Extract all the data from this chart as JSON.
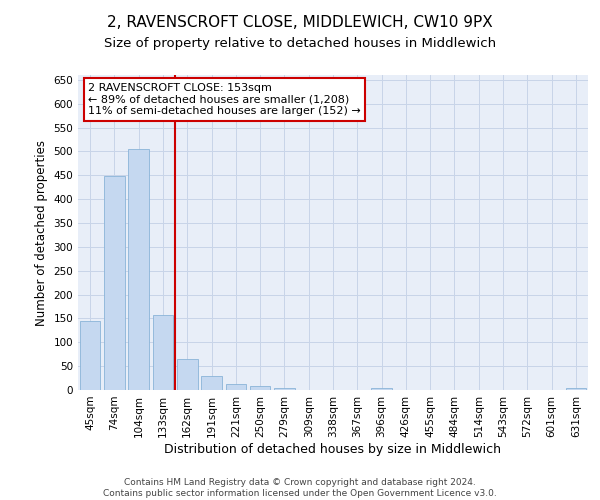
{
  "title": "2, RAVENSCROFT CLOSE, MIDDLEWICH, CW10 9PX",
  "subtitle": "Size of property relative to detached houses in Middlewich",
  "xlabel": "Distribution of detached houses by size in Middlewich",
  "ylabel": "Number of detached properties",
  "categories": [
    "45sqm",
    "74sqm",
    "104sqm",
    "133sqm",
    "162sqm",
    "191sqm",
    "221sqm",
    "250sqm",
    "279sqm",
    "309sqm",
    "338sqm",
    "367sqm",
    "396sqm",
    "426sqm",
    "455sqm",
    "484sqm",
    "514sqm",
    "543sqm",
    "572sqm",
    "601sqm",
    "631sqm"
  ],
  "values": [
    145,
    448,
    505,
    158,
    65,
    30,
    13,
    8,
    5,
    0,
    0,
    0,
    5,
    0,
    0,
    0,
    0,
    0,
    0,
    0,
    5
  ],
  "bar_color": "#c5d8f0",
  "bar_edge_color": "#8ab4d8",
  "vline_color": "#cc0000",
  "annotation_text": "2 RAVENSCROFT CLOSE: 153sqm\n← 89% of detached houses are smaller (1,208)\n11% of semi-detached houses are larger (152) →",
  "annotation_box_color": "#ffffff",
  "annotation_box_edge": "#cc0000",
  "ylim": [
    0,
    660
  ],
  "yticks": [
    0,
    50,
    100,
    150,
    200,
    250,
    300,
    350,
    400,
    450,
    500,
    550,
    600,
    650
  ],
  "grid_color": "#c8d4e8",
  "bg_color": "#e8eef8",
  "footer": "Contains HM Land Registry data © Crown copyright and database right 2024.\nContains public sector information licensed under the Open Government Licence v3.0.",
  "title_fontsize": 11,
  "subtitle_fontsize": 9.5,
  "ylabel_fontsize": 8.5,
  "xlabel_fontsize": 9,
  "tick_fontsize": 7.5,
  "annotation_fontsize": 8,
  "footer_fontsize": 6.5
}
